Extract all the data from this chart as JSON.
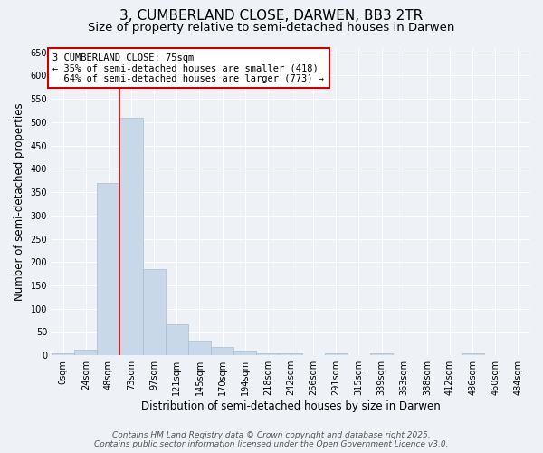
{
  "title_line1": "3, CUMBERLAND CLOSE, DARWEN, BB3 2TR",
  "title_line2": "Size of property relative to semi-detached houses in Darwen",
  "xlabel": "Distribution of semi-detached houses by size in Darwen",
  "ylabel": "Number of semi-detached properties",
  "bin_labels": [
    "0sqm",
    "24sqm",
    "48sqm",
    "73sqm",
    "97sqm",
    "121sqm",
    "145sqm",
    "170sqm",
    "194sqm",
    "218sqm",
    "242sqm",
    "266sqm",
    "291sqm",
    "315sqm",
    "339sqm",
    "363sqm",
    "388sqm",
    "412sqm",
    "436sqm",
    "460sqm",
    "484sqm"
  ],
  "bar_heights": [
    5,
    13,
    370,
    510,
    185,
    66,
    31,
    17,
    10,
    4,
    4,
    0,
    5,
    0,
    5,
    0,
    0,
    0,
    5,
    0,
    0
  ],
  "bar_color": "#c8d8e8",
  "bar_edge_color": "#a8bece",
  "property_line_bin": 3,
  "property_size": "75sqm",
  "property_name": "3 CUMBERLAND CLOSE",
  "pct_smaller": 35,
  "count_smaller": 418,
  "pct_larger": 64,
  "count_larger": 773,
  "annotation_box_color": "#ffffff",
  "annotation_border_color": "#cc0000",
  "property_line_color": "#cc0000",
  "ylim": [
    0,
    660
  ],
  "yticks": [
    0,
    50,
    100,
    150,
    200,
    250,
    300,
    350,
    400,
    450,
    500,
    550,
    600,
    650
  ],
  "footer_line1": "Contains HM Land Registry data © Crown copyright and database right 2025.",
  "footer_line2": "Contains public sector information licensed under the Open Government Licence v3.0.",
  "background_color": "#eef2f6",
  "grid_color": "#ffffff",
  "title_fontsize": 11,
  "subtitle_fontsize": 9.5,
  "axis_label_fontsize": 8.5,
  "tick_fontsize": 7,
  "annotation_fontsize": 7.5,
  "footer_fontsize": 6.5
}
